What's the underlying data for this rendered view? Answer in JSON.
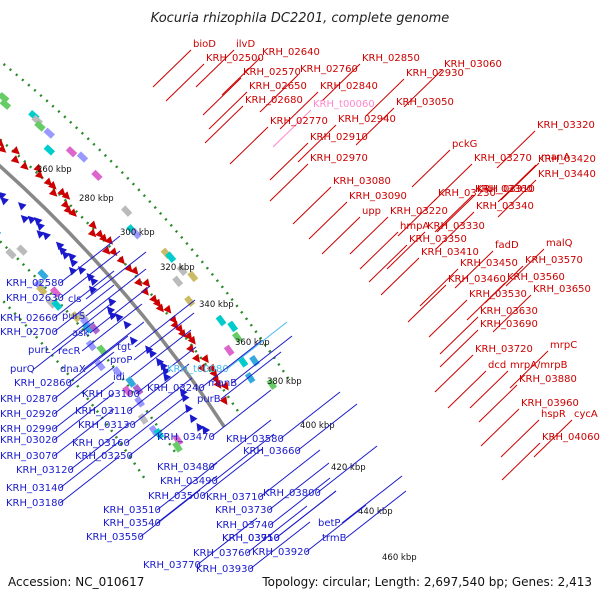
{
  "title": "Kocuria rhizophila DC2201, complete genome",
  "footer": {
    "accession": "Accession: NC_010617",
    "summary": "Topology: circular; Length: 2,697,540 bp; Genes: 2,413"
  },
  "colors": {
    "forward": "#cc0000",
    "reverse": "#1a1acc",
    "backbone": "#888888",
    "dots": "#2a8a2a"
  },
  "ticks": [
    "260 kbp",
    "280 kbp",
    "300 kbp",
    "320 kbp",
    "340 kbp",
    "360 kbp",
    "380 kbp",
    "400 kbp",
    "420 kbp",
    "440 kbp",
    "460 kbp"
  ],
  "forward_labels": [
    "bioD",
    "ilvD",
    "KRH_02500",
    "KRH_02640",
    "KRH_02570",
    "KRH_02760",
    "KRH_02850",
    "KRH_02650",
    "KRH_02840",
    "KRH_02930",
    "KRH_03060",
    "KRH_02680",
    "KRH_t00060",
    "KRH_03050",
    "KRH_02770",
    "KRH_02940",
    "KRH_02910",
    "KRH_02970",
    "KRH_03080",
    "KRH_03090",
    "upp",
    "hmpA",
    "KRH_03270",
    "KRH_03310",
    "KRH_03230",
    "KRH_03220",
    "KRH_03330",
    "KRH_03340",
    "KRH_03350",
    "KRH_03360",
    "KRH_03410",
    "KRH_03450",
    "KRH_03460",
    "KRH_03530",
    "KRH_03560",
    "KRH_03570",
    "KRH_03650",
    "KRH_03630",
    "KRH_03690",
    "KRH_03720",
    "mrpC",
    "dcd",
    "mrpA/mrpB",
    "KRH_03880",
    "KRH_03960",
    "hspR",
    "cycA",
    "KRH_04060",
    "pckG",
    "manA",
    "KRH_03320",
    "KRH_03420",
    "KRH_03440",
    "fadD",
    "malQ"
  ],
  "reverse_labels": [
    "KRH_02580",
    "KRH_02630",
    "cls",
    "KRH_02660",
    "purS",
    "KRH_02700",
    "ask",
    "purL",
    "recR",
    "purQ",
    "tgt",
    "proP",
    "dnaX",
    "KRH_02860",
    "idi",
    "KRH_02870",
    "KRH_03100",
    "KRH_02920",
    "KRH_03110",
    "KRH_02990",
    "KRH_03130",
    "KRH_03020",
    "KRH_03160",
    "KRH_03070",
    "KRH_03250",
    "KRH_03120",
    "KRH_03140",
    "KRH_03180",
    "KRH_t00080",
    "KRH_03240",
    "manB",
    "purB",
    "KRH_03470",
    "KRH_03580",
    "KRH_03660",
    "KRH_03480",
    "KRH_03490",
    "KRH_03500",
    "KRH_03510",
    "KRH_03540",
    "KRH_03550",
    "KRH_03710",
    "KRH_03730",
    "KRH_03740",
    "KRH_03750",
    "KRH_03760",
    "KRH_03770",
    "KRH_03800",
    "KRH_03910",
    "KRH_03920",
    "KRH_03930",
    "betP",
    "trmB"
  ]
}
